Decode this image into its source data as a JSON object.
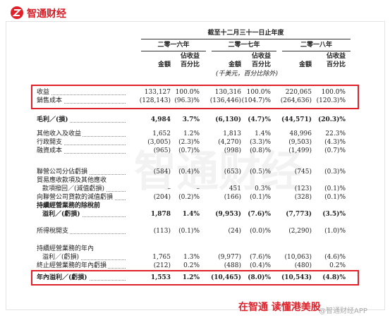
{
  "header": {
    "logo_text": "智通财经"
  },
  "table": {
    "period_title": "截至十二月三十一日止年度",
    "years": [
      "二零一六年",
      "二零一七年",
      "二零一八年"
    ],
    "sub_headers": {
      "amount": "金額",
      "percent": [
        "佔收益",
        "百分比"
      ]
    },
    "unit_note": "(千美元，百分比除外)",
    "rows": [
      {
        "label": [
          "收益"
        ],
        "values": [
          "133,127",
          "100.0%",
          "130,316",
          "100.0%",
          "220,065",
          "100.0%"
        ]
      },
      {
        "label": [
          "銷售成本"
        ],
        "values": [
          "(128,143)",
          "(96.3)%",
          "(136,446)",
          "(104.7)%",
          "(264,636)",
          "(120.3)%"
        ]
      },
      {
        "label": [
          "毛利／(損)"
        ],
        "values": [
          "4,984",
          "3.7%",
          "(6,130)",
          "(4.7)%",
          "(44,571)",
          "(20.3)%"
        ],
        "bold": true
      },
      {
        "label": [
          "其他收入及收益"
        ],
        "values": [
          "1,652",
          "1.2%",
          "1,813",
          "1.4%",
          "48,996",
          "22.3%"
        ]
      },
      {
        "label": [
          "行政開支"
        ],
        "values": [
          "(3,005)",
          "(2.3)%",
          "(4,270)",
          "(3.3)%",
          "(9,503)",
          "(4.3)%"
        ]
      },
      {
        "label": [
          "融資成本"
        ],
        "values": [
          "(965)",
          "(0.7)%",
          "(998)",
          "(0.8)%",
          "(1,499)",
          "(0.7)%"
        ]
      },
      {
        "label": [
          "聯營公司分佔虧損"
        ],
        "values": [
          "(584)",
          "(0.4)%",
          "(653)",
          "(0.5)%",
          "(745)",
          "(0.3)%"
        ]
      },
      {
        "label": [
          "貿易應收款項及其他應收",
          "款項撥回／(減值虧損)"
        ],
        "values": [
          "–",
          "–",
          "451",
          "0.3%",
          "(123)",
          "(0.1)%"
        ]
      },
      {
        "label": [
          "向聯營公司貸款的減值虧損"
        ],
        "values": [
          "(204)",
          "(0.2)%",
          "(166)",
          "(0.1)%",
          "(328)",
          "(0.1)%"
        ]
      },
      {
        "label": [
          "持續經營業務的除稅前",
          "溢利／(虧損)"
        ],
        "values": [
          "1,878",
          "1.4%",
          "(9,953)",
          "(7.6)%",
          "(7,773)",
          "(3.5)%"
        ],
        "bold": true
      },
      {
        "label": [
          "所得稅開支"
        ],
        "values": [
          "(113)",
          "(0.1)%",
          "(24)",
          "(0.0)%",
          "(2,290)",
          "(1.0)%"
        ]
      },
      {
        "label": [
          "持續經營業務的年內",
          "溢利／(虧損)"
        ],
        "values": [
          "1,765",
          "1.3%",
          "(9,977)",
          "(7.6)%",
          "(10,063)",
          "(4.6)%"
        ]
      },
      {
        "label": [
          "終止經營業務的年內虧損"
        ],
        "values": [
          "(212)",
          "0.2%",
          "(488)",
          "(0.4)%",
          "(480)",
          "0.2%"
        ]
      },
      {
        "label": [
          "年內溢利／(虧損)"
        ],
        "values": [
          "1,553",
          "1.2%",
          "(10,465)",
          "(8.0)%",
          "(10,543)",
          "(4.8)%"
        ],
        "bold": true
      }
    ]
  },
  "watermark": "智通财经",
  "footer": {
    "slogan": "在智通 读懂港美股",
    "handle": "@智通财经APP"
  }
}
